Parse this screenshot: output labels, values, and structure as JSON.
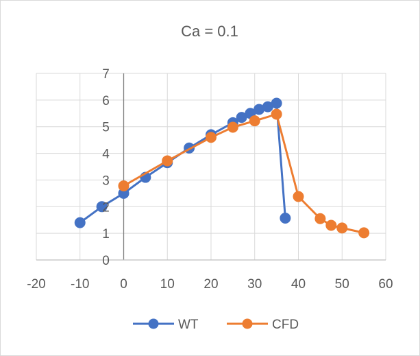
{
  "chart_data": {
    "type": "line",
    "title": "Ca = 0.1",
    "xlabel": "",
    "ylabel": "",
    "xlim": [
      -20,
      60
    ],
    "ylim": [
      0,
      7
    ],
    "x_ticks": [
      -20,
      -10,
      0,
      10,
      20,
      30,
      40,
      50,
      60
    ],
    "y_ticks": [
      0,
      1,
      2,
      3,
      4,
      5,
      6,
      7
    ],
    "grid": true,
    "legend_position": "bottom",
    "series": [
      {
        "name": "WT",
        "color": "#4472C4",
        "marker": "circle",
        "points": [
          {
            "x": -10,
            "y": 1.4
          },
          {
            "x": -5,
            "y": 2.0
          },
          {
            "x": 0,
            "y": 2.5
          },
          {
            "x": 5,
            "y": 3.1
          },
          {
            "x": 10,
            "y": 3.65
          },
          {
            "x": 15,
            "y": 4.2
          },
          {
            "x": 20,
            "y": 4.7
          },
          {
            "x": 25,
            "y": 5.15
          },
          {
            "x": 27,
            "y": 5.35
          },
          {
            "x": 29,
            "y": 5.5
          },
          {
            "x": 31,
            "y": 5.65
          },
          {
            "x": 33,
            "y": 5.75
          },
          {
            "x": 35,
            "y": 5.88
          },
          {
            "x": 37,
            "y": 1.57
          }
        ]
      },
      {
        "name": "CFD",
        "color": "#ED7D31",
        "marker": "circle",
        "points": [
          {
            "x": 0,
            "y": 2.78
          },
          {
            "x": 10,
            "y": 3.72
          },
          {
            "x": 20,
            "y": 4.6
          },
          {
            "x": 25,
            "y": 4.98
          },
          {
            "x": 30,
            "y": 5.22
          },
          {
            "x": 35,
            "y": 5.47
          },
          {
            "x": 40,
            "y": 2.38
          },
          {
            "x": 45,
            "y": 1.55
          },
          {
            "x": 47.5,
            "y": 1.3
          },
          {
            "x": 50,
            "y": 1.2
          },
          {
            "x": 55,
            "y": 1.02
          }
        ]
      }
    ]
  }
}
